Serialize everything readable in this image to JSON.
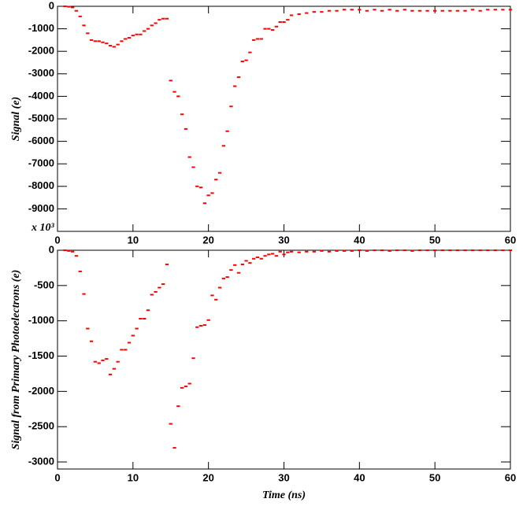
{
  "chart_data": [
    {
      "type": "scatter",
      "y_label": "Signal (e)",
      "axis_multiplier": "x 10³",
      "xlim": [
        0,
        60
      ],
      "xticks": [
        0,
        10,
        20,
        30,
        40,
        50,
        60
      ],
      "ylim": [
        -10000,
        0
      ],
      "yticks": [
        0,
        -1000,
        -2000,
        -3000,
        -4000,
        -5000,
        -6000,
        -7000,
        -8000,
        -9000
      ],
      "x": [
        1,
        1.5,
        2,
        2.5,
        3,
        3.5,
        4,
        4.5,
        5,
        5.5,
        6,
        6.5,
        7,
        7.5,
        8,
        8.5,
        9,
        9.5,
        10,
        10.5,
        11,
        11.5,
        12,
        12.5,
        13,
        13.5,
        14,
        14.5,
        15,
        15.5,
        16,
        16.5,
        17,
        17.5,
        18,
        18.5,
        19,
        19.5,
        20,
        20.5,
        21,
        21.5,
        22,
        22.5,
        23,
        23.5,
        24,
        24.5,
        25,
        25.5,
        26,
        26.5,
        27,
        27.5,
        28,
        28.5,
        29,
        29.5,
        30,
        30.5,
        31,
        32,
        33,
        34,
        35,
        36,
        37,
        38,
        39,
        40,
        41,
        42,
        43,
        44,
        45,
        46,
        47,
        48,
        49,
        50,
        51,
        52,
        53,
        54,
        55,
        56,
        57,
        58,
        59,
        60
      ],
      "series": [
        {
          "color": "#ff0000",
          "values": [
            0,
            -20,
            -50,
            -200,
            -450,
            -850,
            -1200,
            -1500,
            -1550,
            -1550,
            -1600,
            -1650,
            -1750,
            -1800,
            -1700,
            -1550,
            -1450,
            -1400,
            -1300,
            -1250,
            -1250,
            -1100,
            -1000,
            -850,
            -750,
            -600,
            -550,
            -550,
            -3300,
            -3800,
            -4000,
            -4800,
            -5450,
            -6700,
            -7150,
            -8000,
            -8050,
            -8750,
            -8400,
            -8300,
            -7700,
            -7400,
            -6200,
            -5550,
            -4450,
            -3550,
            -3150,
            -2450,
            -2400,
            -2050,
            -1500,
            -1450,
            -1450,
            -1000,
            -1000,
            -1050,
            -900,
            -700,
            -700,
            -600,
            -400,
            -350,
            -300,
            -250,
            -250,
            -200,
            -200,
            -150,
            -150,
            -150,
            -200,
            -150,
            -200,
            -150,
            -200,
            -150,
            -200,
            -200,
            -200,
            -200,
            -200,
            -200,
            -200,
            -200,
            -150,
            -200,
            -150,
            -150,
            -150,
            -150
          ]
        }
      ]
    },
    {
      "type": "scatter",
      "y_label": "Signal from Primary Photoelectrons (e)",
      "x_label": "Time (ns)",
      "xlim": [
        0,
        60
      ],
      "xticks": [
        0,
        10,
        20,
        30,
        40,
        50,
        60
      ],
      "ylim": [
        -3100,
        0
      ],
      "yticks": [
        0,
        -500,
        -1000,
        -1500,
        -2000,
        -2500,
        -3000
      ],
      "x": [
        1,
        1.5,
        2,
        2.5,
        3,
        3.5,
        4,
        4.5,
        5,
        5.5,
        6,
        6.5,
        7,
        7.5,
        8,
        8.5,
        9,
        9.5,
        10,
        10.5,
        11,
        11.5,
        12,
        12.5,
        13,
        13.5,
        14,
        14.5,
        15,
        15.5,
        16,
        16.5,
        17,
        17.5,
        18,
        18.5,
        19,
        19.5,
        20,
        20.5,
        21,
        21.5,
        22,
        22.5,
        23,
        23.5,
        24,
        24.5,
        25,
        25.5,
        26,
        26.5,
        27,
        27.5,
        28,
        28.5,
        29,
        29.5,
        30,
        30.5,
        31,
        32,
        33,
        34,
        35,
        36,
        37,
        38,
        39,
        40,
        41,
        42,
        43,
        44,
        45,
        46,
        47,
        48,
        49,
        50,
        51,
        52,
        53,
        54,
        55,
        56,
        57,
        58,
        59,
        60
      ],
      "series": [
        {
          "color": "#ff0000",
          "values": [
            0,
            -10,
            -20,
            -80,
            -300,
            -620,
            -1110,
            -1290,
            -1580,
            -1600,
            -1560,
            -1540,
            -1760,
            -1680,
            -1580,
            -1410,
            -1410,
            -1310,
            -1210,
            -1110,
            -970,
            -970,
            -850,
            -630,
            -590,
            -530,
            -480,
            -200,
            -2460,
            -2800,
            -2210,
            -1950,
            -1930,
            -1890,
            -1530,
            -1090,
            -1070,
            -1060,
            -990,
            -640,
            -700,
            -530,
            -400,
            -380,
            -280,
            -210,
            -320,
            -200,
            -150,
            -180,
            -120,
            -100,
            -120,
            -80,
            -60,
            -50,
            -80,
            -20,
            -60,
            -30,
            -20,
            -30,
            -20,
            -20,
            -10,
            -20,
            -10,
            -10,
            -10,
            0,
            -10,
            0,
            0,
            -10,
            0,
            0,
            -10,
            0,
            0,
            0,
            0,
            0,
            0,
            0,
            0,
            0,
            0,
            0,
            0,
            0
          ]
        }
      ]
    }
  ]
}
